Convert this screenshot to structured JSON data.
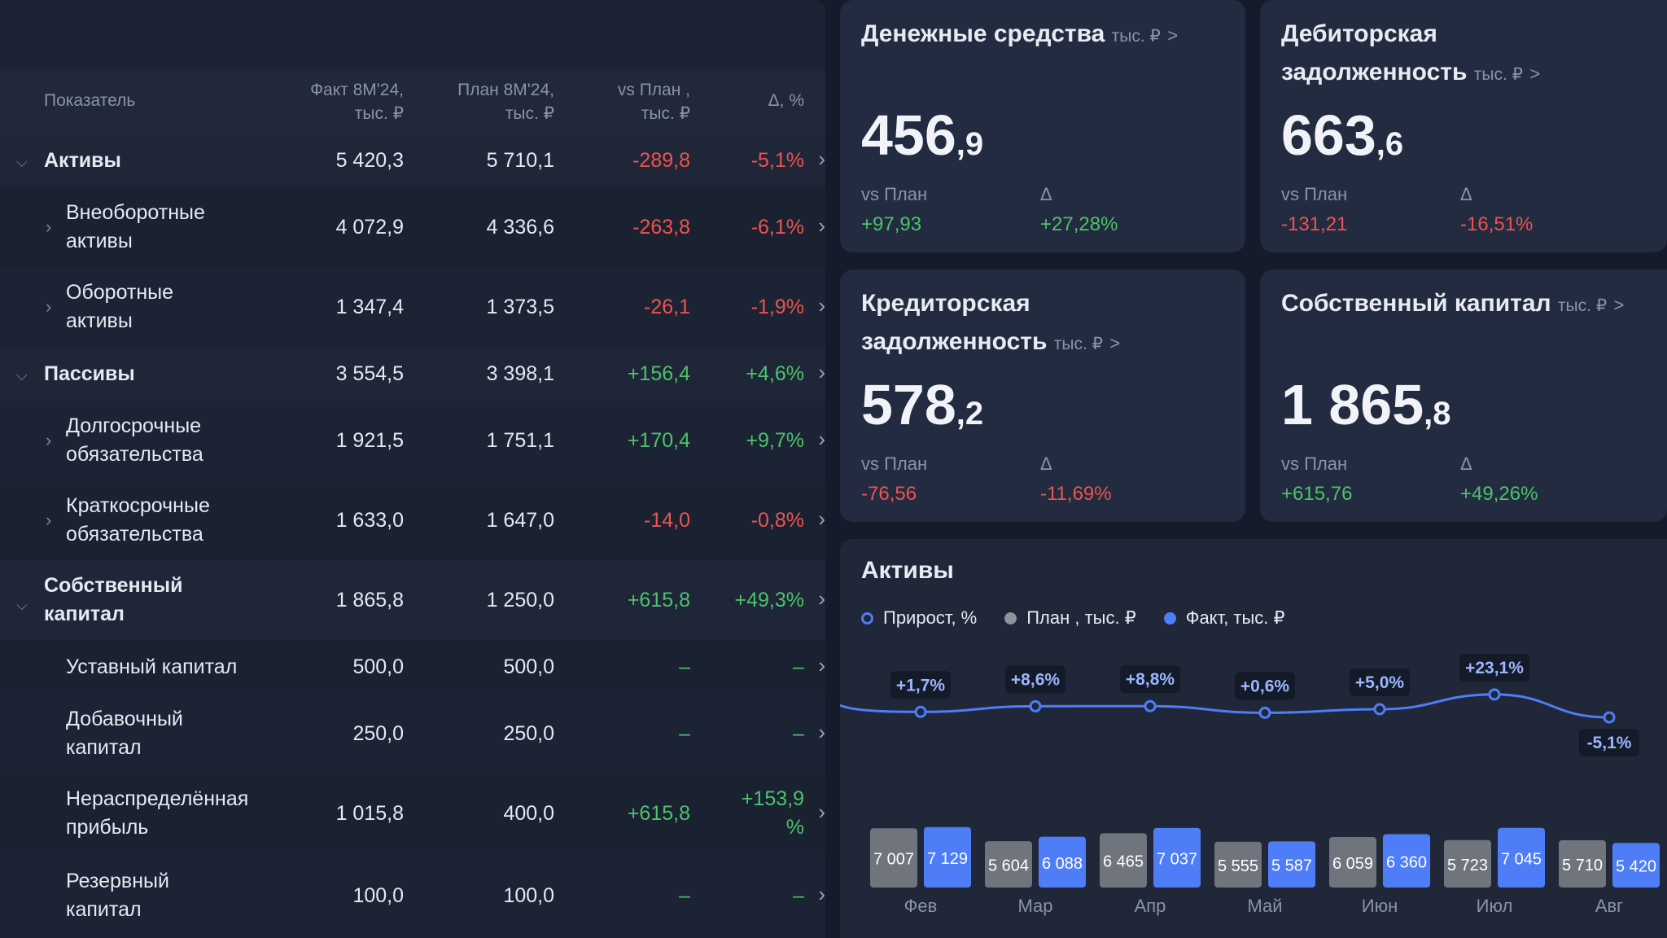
{
  "table": {
    "headers": {
      "name": "Показатель",
      "fact_1": "Факт 8М'24,",
      "fact_2": "тыс. ₽",
      "plan_1": "План 8М'24,",
      "plan_2": "тыс. ₽",
      "vs_1": "vs План ,",
      "vs_2": "тыс. ₽",
      "delta": "Δ, %"
    },
    "rows": [
      {
        "name1": "Активы",
        "name2": "",
        "fact": "5 420,3",
        "plan": "5 710,1",
        "vs": "-289,8",
        "delta": "-5,1%",
        "delta2": ""
      },
      {
        "name1": "Внеоборотные",
        "name2": "активы",
        "fact": "4 072,9",
        "plan": "4 336,6",
        "vs": "-263,8",
        "delta": "-6,1%",
        "delta2": ""
      },
      {
        "name1": "Оборотные",
        "name2": "активы",
        "fact": "1 347,4",
        "plan": "1 373,5",
        "vs": "-26,1",
        "delta": "-1,9%",
        "delta2": ""
      },
      {
        "name1": "Пассивы",
        "name2": "",
        "fact": "3 554,5",
        "plan": "3 398,1",
        "vs": "+156,4",
        "delta": "+4,6%",
        "delta2": ""
      },
      {
        "name1": "Долгосрочные",
        "name2": "обязательства",
        "fact": "1 921,5",
        "plan": "1 751,1",
        "vs": "+170,4",
        "delta": "+9,7%",
        "delta2": ""
      },
      {
        "name1": "Краткосрочные",
        "name2": "обязательства",
        "fact": "1 633,0",
        "plan": "1 647,0",
        "vs": "-14,0",
        "delta": "-0,8%",
        "delta2": ""
      },
      {
        "name1": "Собственный",
        "name2": "капитал",
        "fact": "1 865,8",
        "plan": "1 250,0",
        "vs": "+615,8",
        "delta": "+49,3%",
        "delta2": ""
      },
      {
        "name1": "Уставный капитал",
        "name2": "",
        "fact": "500,0",
        "plan": "500,0",
        "vs": "–",
        "delta": "–",
        "delta2": ""
      },
      {
        "name1": "Добавочный",
        "name2": "капитал",
        "fact": "250,0",
        "plan": "250,0",
        "vs": "–",
        "delta": "–",
        "delta2": ""
      },
      {
        "name1": "Нераспределённая",
        "name2": "прибыль",
        "fact": "1 015,8",
        "plan": "400,0",
        "vs": "+615,8",
        "delta": "+153,9",
        "delta2": "%"
      },
      {
        "name1": "Резервный",
        "name2": "капитал",
        "fact": "100,0",
        "plan": "100,0",
        "vs": "–",
        "delta": "–",
        "delta2": ""
      }
    ]
  },
  "cards": {
    "cash": {
      "title": "Денежные средства",
      "unit": "тыс. ₽",
      "arrow": ">",
      "value_int": "456",
      "value_dec": ",9",
      "vs_label": "vs План",
      "d_label": "Δ",
      "vs": "+97,93",
      "d": "+27,28%"
    },
    "receivables": {
      "title1": "Дебиторская",
      "title2": "задолженность",
      "unit": "тыс. ₽",
      "arrow": ">",
      "value_int": "663",
      "value_dec": ",6",
      "vs_label": "vs План",
      "d_label": "Δ",
      "vs": "-131,21",
      "d": "-16,51%"
    },
    "payables": {
      "title1": "Кредиторская",
      "title2": "задолженность",
      "unit": "тыс. ₽",
      "arrow": ">",
      "value_int": "578",
      "value_dec": ",2",
      "vs_label": "vs План",
      "d_label": "Δ",
      "vs": "-76,56",
      "d": "-11,69%"
    },
    "equity": {
      "title": "Собственный капитал",
      "unit": "тыс. ₽",
      "arrow": ">",
      "value_int": "1 865",
      "value_dec": ",8",
      "vs_label": "vs План",
      "d_label": "Δ",
      "vs": "+615,76",
      "d": "+49,26%"
    }
  },
  "chart": {
    "title": "Активы",
    "legend": [
      "Прирост, %",
      "План , тыс. ₽",
      "Факт, тыс. ₽"
    ]
  },
  "chart_data": {
    "type": "bar",
    "categories": [
      "Фев",
      "Мар",
      "Апр",
      "Май",
      "Июн",
      "Июл",
      "Авг"
    ],
    "series": [
      {
        "name": "План , тыс. ₽",
        "values": [
          7007,
          5604,
          6465,
          5555,
          6059,
          5723,
          5710
        ],
        "labels": [
          "7 007",
          "5 604",
          "6 465",
          "5 555",
          "6 059",
          "5 723",
          "5 710"
        ],
        "color": "#6f747d"
      },
      {
        "name": "Факт, тыс. ₽",
        "values": [
          7129,
          6088,
          7037,
          5587,
          6360,
          7045,
          5420
        ],
        "labels": [
          "7 129",
          "6 088",
          "7 037",
          "5 587",
          "6 360",
          "7 045",
          "5 420"
        ],
        "color": "#4f7df7"
      },
      {
        "name": "Прирост, %",
        "values": [
          1.7,
          8.6,
          8.8,
          0.6,
          5.0,
          23.1,
          -5.1
        ],
        "labels": [
          "+1,7%",
          "+8,6%",
          "+8,8%",
          "+0,6%",
          "+5,0%",
          "+23,1%",
          "-5,1%"
        ],
        "color": "#4f7df7"
      }
    ]
  }
}
